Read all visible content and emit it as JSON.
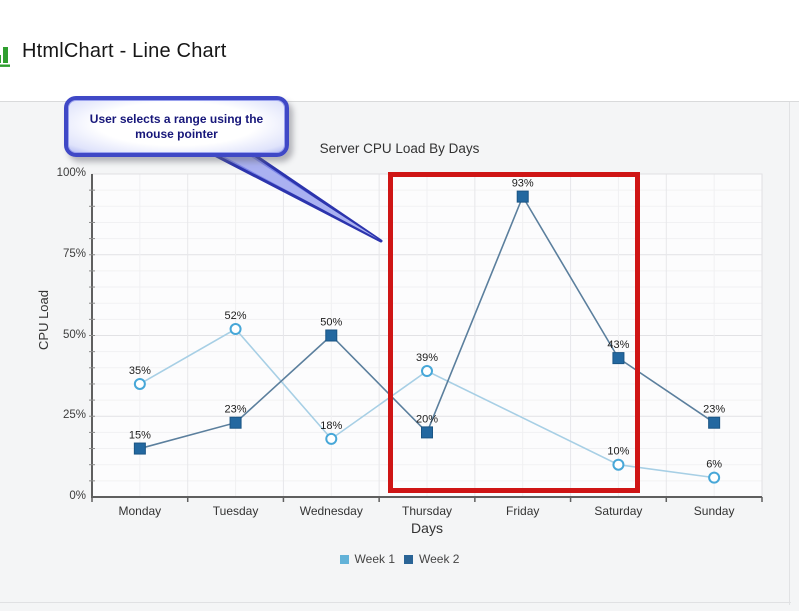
{
  "header": {
    "title": "HtmlChart - Line Chart",
    "icon": "bar-chart-icon",
    "icon_color": "#2f9e2f"
  },
  "callout": {
    "line1": "User selects a range using the",
    "line2": "mouse pointer"
  },
  "chart_data": {
    "type": "line",
    "title": "Server CPU Load By Days",
    "xlabel": "Days",
    "ylabel": "CPU Load",
    "ylim": [
      0,
      100
    ],
    "y_ticks": [
      0,
      25,
      50,
      75,
      100
    ],
    "y_tick_suffix": "%",
    "grid": true,
    "legend_position": "bottom",
    "categories": [
      "Monday",
      "Tuesday",
      "Wednesday",
      "Thursday",
      "Friday",
      "Saturday",
      "Sunday"
    ],
    "series": [
      {
        "name": "Week 1",
        "values": [
          35,
          52,
          18,
          39,
          null,
          10,
          6
        ],
        "data_labels": [
          "35%",
          "52%",
          "18%",
          "39%",
          null,
          "10%",
          "6%"
        ],
        "line_color": "#a7cfe5",
        "marker": "circle",
        "marker_color": "#47a7d8",
        "marker_fill": "#ffffff",
        "legend_color": "#62b2d8"
      },
      {
        "name": "Week 2",
        "values": [
          15,
          23,
          50,
          20,
          93,
          43,
          23
        ],
        "data_labels": [
          "15%",
          "23%",
          "50%",
          "20%",
          "93%",
          "43%",
          "23%"
        ],
        "line_color": "#5b7f9d",
        "marker": "square",
        "marker_color": "#2368a0",
        "marker_border": "#1a5584",
        "legend_color": "#2a6496"
      }
    ],
    "annotations": {
      "selection_range": {
        "from": "Thursday",
        "to": "Saturday",
        "color": "#cf1515"
      }
    }
  }
}
